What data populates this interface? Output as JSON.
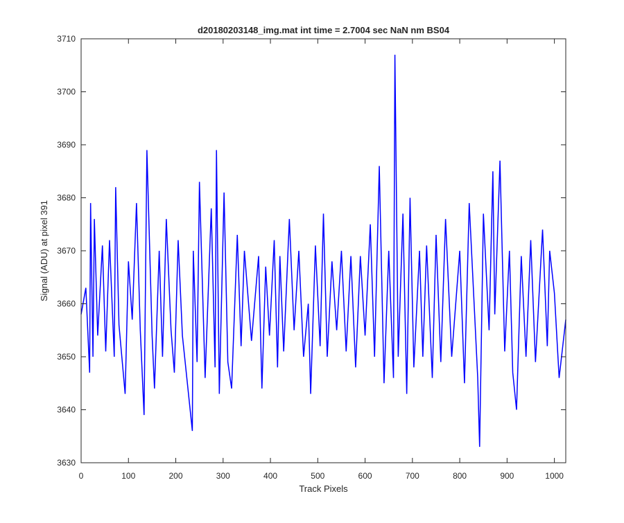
{
  "chart_data": {
    "type": "line",
    "title": "d20180203148_img.mat int time = 2.7004 sec  NaN nm BS04",
    "xlabel": "Track Pixels",
    "ylabel": "Signal (ADU) at pixel 391",
    "xlim": [
      0,
      1024
    ],
    "ylim": [
      3630,
      3710
    ],
    "xticks": [
      0,
      100,
      200,
      300,
      400,
      500,
      600,
      700,
      800,
      900,
      1000
    ],
    "yticks": [
      3630,
      3640,
      3650,
      3660,
      3670,
      3680,
      3690,
      3700,
      3710
    ],
    "grid": false,
    "legend": "none",
    "series": [
      {
        "color": "#0000ff",
        "x": [
          0,
          10,
          18,
          20,
          25,
          28,
          35,
          45,
          52,
          60,
          70,
          73,
          80,
          93,
          100,
          108,
          117,
          125,
          133,
          139,
          150,
          155,
          165,
          172,
          180,
          190,
          197,
          205,
          214,
          228,
          235,
          237,
          245,
          250,
          262,
          275,
          283,
          286,
          292,
          302,
          310,
          318,
          330,
          338,
          345,
          360,
          375,
          382,
          390,
          398,
          408,
          415,
          420,
          428,
          440,
          450,
          460,
          470,
          480,
          485,
          495,
          505,
          512,
          520,
          530,
          540,
          550,
          560,
          570,
          580,
          590,
          600,
          611,
          620,
          630,
          640,
          650,
          660,
          663,
          670,
          680,
          688,
          695,
          703,
          715,
          722,
          730,
          742,
          750,
          760,
          770,
          783,
          800,
          810,
          820,
          838,
          842,
          850,
          862,
          870,
          874,
          885,
          895,
          905,
          912,
          920,
          930,
          940,
          950,
          960,
          975,
          985,
          990,
          1000,
          1010,
          1024
        ],
        "y": [
          3658,
          3663,
          3647,
          3679,
          3650,
          3676,
          3654,
          3671,
          3651,
          3672,
          3650,
          3682,
          3656,
          3643,
          3668,
          3657,
          3679,
          3655,
          3639,
          3689,
          3654,
          3644,
          3670,
          3650,
          3676,
          3655,
          3647,
          3672,
          3654,
          3642,
          3636,
          3670,
          3649,
          3683,
          3646,
          3678,
          3648,
          3689,
          3643,
          3681,
          3649,
          3644,
          3673,
          3652,
          3670,
          3653,
          3669,
          3644,
          3667,
          3654,
          3672,
          3648,
          3669,
          3651,
          3676,
          3655,
          3670,
          3650,
          3660,
          3643,
          3671,
          3652,
          3677,
          3650,
          3668,
          3655,
          3670,
          3651,
          3669,
          3648,
          3669,
          3654,
          3675,
          3650,
          3686,
          3645,
          3670,
          3646,
          3707,
          3650,
          3677,
          3643,
          3680,
          3648,
          3670,
          3650,
          3671,
          3646,
          3673,
          3649,
          3676,
          3650,
          3670,
          3645,
          3679,
          3646,
          3633,
          3677,
          3655,
          3685,
          3658,
          3687,
          3651,
          3670,
          3647,
          3640,
          3669,
          3650,
          3672,
          3649,
          3674,
          3652,
          3670,
          3662,
          3646,
          3657
        ]
      }
    ]
  }
}
